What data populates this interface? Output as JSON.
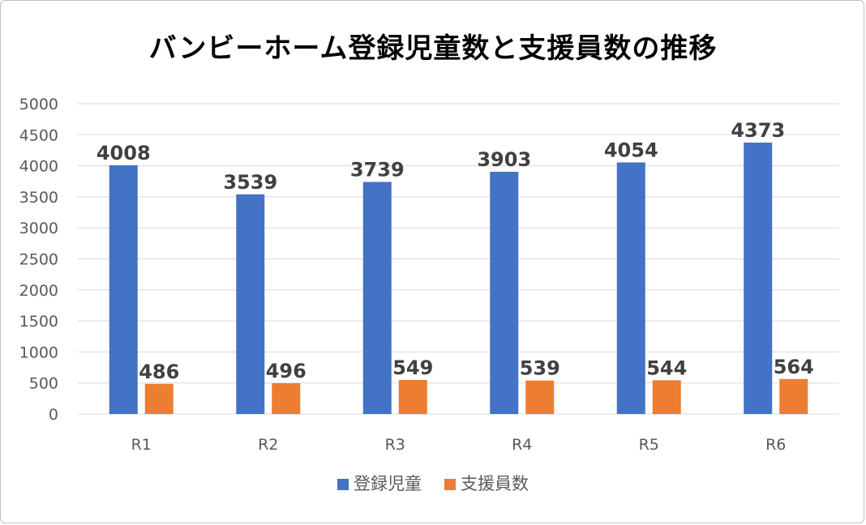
{
  "chart_data": {
    "type": "bar",
    "title": "バンビーホーム登録児童数と支援員数の推移",
    "categories": [
      "R1",
      "R2",
      "R3",
      "R4",
      "R5",
      "R6"
    ],
    "series": [
      {
        "name": "登録児童",
        "values": [
          4008,
          3539,
          3739,
          3903,
          4054,
          4373
        ],
        "color": "#4472C4"
      },
      {
        "name": "支援員数",
        "values": [
          486,
          496,
          549,
          539,
          544,
          564
        ],
        "color": "#ED7D31"
      }
    ],
    "yticks": [
      "0",
      "500",
      "1000",
      "1500",
      "2000",
      "2500",
      "3000",
      "3500",
      "4000",
      "4500",
      "5000"
    ],
    "ylim": [
      0,
      5000
    ],
    "grid": true,
    "legend": "bottom",
    "data_labels": true,
    "gridline_color": "#d9d9d9"
  }
}
